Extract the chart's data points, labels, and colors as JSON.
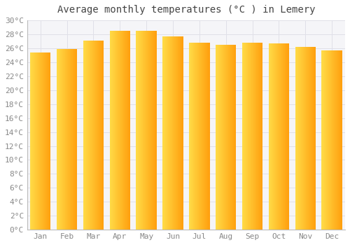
{
  "title": "Average monthly temperatures (°C ) in Lemery",
  "months": [
    "Jan",
    "Feb",
    "Mar",
    "Apr",
    "May",
    "Jun",
    "Jul",
    "Aug",
    "Sep",
    "Oct",
    "Nov",
    "Dec"
  ],
  "values": [
    25.4,
    25.9,
    27.1,
    28.5,
    28.5,
    27.7,
    26.8,
    26.5,
    26.8,
    26.7,
    26.2,
    25.7
  ],
  "bar_color_left": "#FFD44A",
  "bar_color_right": "#FFA500",
  "background_color": "#ffffff",
  "plot_bg_color": "#f5f5f8",
  "ylim": [
    0,
    30
  ],
  "ytick_step": 2,
  "title_fontsize": 10,
  "tick_fontsize": 8,
  "grid_color": "#e0e0e8"
}
